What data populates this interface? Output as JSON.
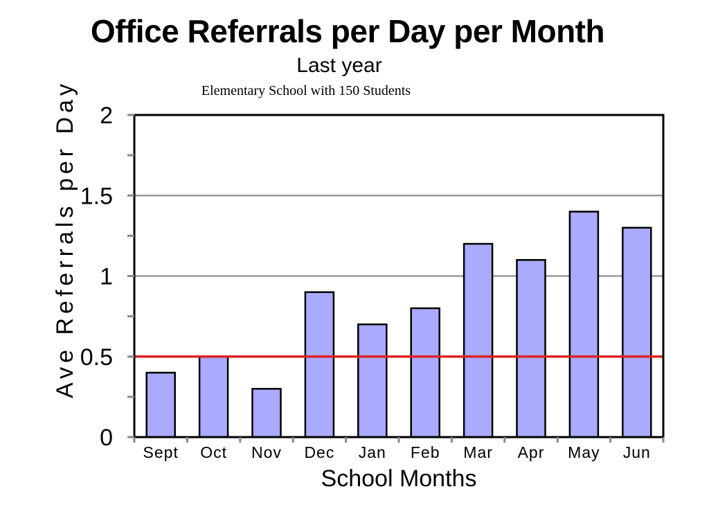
{
  "chart_data": {
    "type": "bar",
    "title": "Office Referrals per Day per Month",
    "subtitle": "Last year",
    "note": "Elementary School with 150 Students",
    "xlabel": "School Months",
    "ylabel": "Ave Referrals per Day",
    "categories": [
      "Sept",
      "Oct",
      "Nov",
      "Dec",
      "Jan",
      "Feb",
      "Mar",
      "Apr",
      "May",
      "Jun"
    ],
    "values": [
      0.4,
      0.5,
      0.3,
      0.9,
      0.7,
      0.8,
      1.2,
      1.1,
      1.4,
      1.3
    ],
    "ylim": [
      0,
      2
    ],
    "yticks": [
      "0",
      "0.5",
      "1",
      "1.5",
      "2"
    ],
    "reference_line": 0.5,
    "grid": true,
    "colors": {
      "bar": "#aaaaff",
      "bar_stroke": "#000000",
      "gridline": "#999999",
      "reference": "#dd2222"
    }
  }
}
